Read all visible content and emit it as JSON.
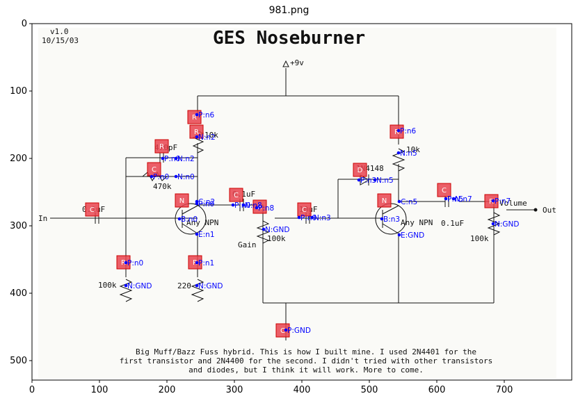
{
  "figure": {
    "title": "981.png",
    "x_ticks": [
      "0",
      "100",
      "200",
      "300",
      "400",
      "500",
      "600",
      "700"
    ],
    "y_ticks": [
      "0",
      "100",
      "200",
      "300",
      "400",
      "500"
    ]
  },
  "schematic": {
    "version": "v1.0",
    "date": "10/15/03",
    "heading": "GES Noseburner",
    "supply": "+9v",
    "input": "In",
    "output": "Out",
    "gain_label": "Gain",
    "volume_label": "Volume",
    "description": [
      "Big Muff/Bazz Fuss hybrid. This is how I built mine. I used 2N4401 for the",
      "first transistor and 2N4400 for the second. I didn't tried with other transistors",
      "and diodes, but I think it will work. More to come."
    ],
    "component_values": {
      "c_in": "0.1uF",
      "c_fb": "470pF",
      "r_fb": "470k",
      "r_c1": "10k",
      "q1": "Any NPN",
      "r_e1": "220",
      "r_b1": "100k",
      "c_mid": "0.1uF",
      "pot_gain": "100k",
      "c_b2": "10uF",
      "diode": "1N4148",
      "r_c2": "10k",
      "q2": "Any NPN",
      "c_out": "0.1uF",
      "pot_vol": "100k"
    }
  },
  "annotations": {
    "boxes": [
      "R",
      "C",
      "R",
      "C",
      "R",
      "N",
      "R",
      "R",
      "C",
      "R",
      "C",
      "R",
      "D",
      "N",
      "C",
      "R",
      "C"
    ],
    "pins": [
      "P:n6",
      "N:n2",
      "P:n0",
      "N:n2",
      "P:n0",
      "N:n0",
      "P:n0",
      "C:n2",
      "E:n1",
      "B:n0",
      "P:n1",
      "N:GND",
      "P:n0",
      "N:GND",
      "P:n0",
      "N:n8",
      "P:n8",
      "N:GND",
      "P:n0",
      "N:n3",
      "P:n6",
      "N:n5",
      "P:n3",
      "N:n5",
      "C:n5",
      "B:n3",
      "E:GND",
      "P:n5",
      "N:n7",
      "P:n7",
      "N:GND",
      "P:GND"
    ],
    "color_box": "#e8434f",
    "color_pin": "#0000ff"
  }
}
